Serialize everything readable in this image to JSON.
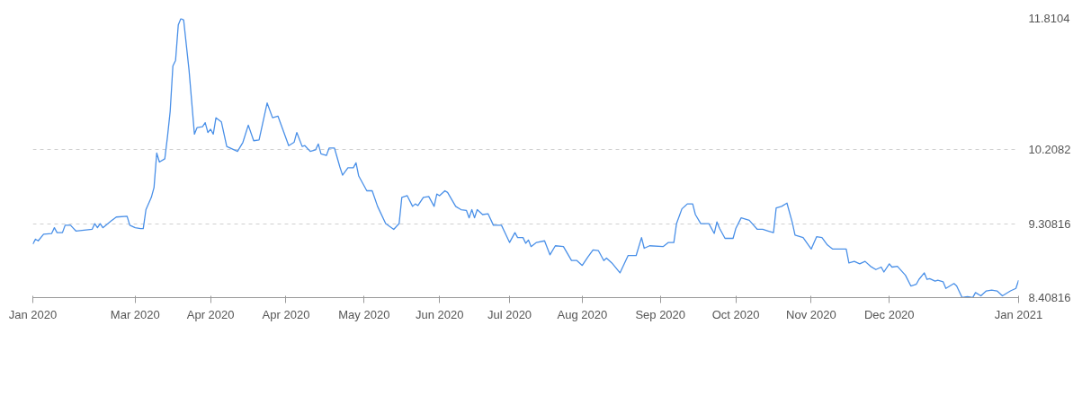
{
  "chart_data": {
    "type": "line",
    "grid": "y",
    "marker": "none",
    "line_style": "solid",
    "xlim": [
      "2020-01-26",
      "2021-01-26"
    ],
    "ylim": [
      8.40816,
      11.8104
    ],
    "xticks": [
      {
        "value": "2020-01-26",
        "label": "Jan 2020"
      },
      {
        "value": "2020-03-04",
        "label": "Mar 2020"
      },
      {
        "value": "2020-04-01",
        "label": "Apr 2020"
      },
      {
        "value": "2020-04-29",
        "label": "Apr 2020"
      },
      {
        "value": "2020-05-28",
        "label": "May 2020"
      },
      {
        "value": "2020-06-25",
        "label": "Jun 2020"
      },
      {
        "value": "2020-07-21",
        "label": "Jul 2020"
      },
      {
        "value": "2020-08-17",
        "label": "Aug 2020"
      },
      {
        "value": "2020-09-15",
        "label": "Sep 2020"
      },
      {
        "value": "2020-10-13",
        "label": "Oct 2020"
      },
      {
        "value": "2020-11-10",
        "label": "Nov 2020"
      },
      {
        "value": "2020-12-09",
        "label": "Dec 2020"
      },
      {
        "value": "2021-01-26",
        "label": "Jan 2021"
      }
    ],
    "yticks": [
      8.40816,
      9.30816,
      10.2082,
      11.8104
    ],
    "x": [
      "2020-01-26",
      "2020-01-27",
      "2020-01-28",
      "2020-01-30",
      "2020-02-02",
      "2020-02-03",
      "2020-02-04",
      "2020-02-06",
      "2020-02-07",
      "2020-02-09",
      "2020-02-11",
      "2020-02-17",
      "2020-02-18",
      "2020-02-19",
      "2020-02-20",
      "2020-02-21",
      "2020-02-24",
      "2020-02-26",
      "2020-03-01",
      "2020-03-02",
      "2020-03-04",
      "2020-03-06",
      "2020-03-07",
      "2020-03-08",
      "2020-03-10",
      "2020-03-11",
      "2020-03-12",
      "2020-03-13",
      "2020-03-15",
      "2020-03-16",
      "2020-03-17",
      "2020-03-18",
      "2020-03-19",
      "2020-03-20",
      "2020-03-21",
      "2020-03-22",
      "2020-03-24",
      "2020-03-26",
      "2020-03-27",
      "2020-03-29",
      "2020-03-30",
      "2020-03-31",
      "2020-04-01",
      "2020-04-02",
      "2020-04-03",
      "2020-04-05",
      "2020-04-07",
      "2020-04-11",
      "2020-04-13",
      "2020-04-15",
      "2020-04-17",
      "2020-04-19",
      "2020-04-22",
      "2020-04-24",
      "2020-04-26",
      "2020-04-30",
      "2020-05-02",
      "2020-05-03",
      "2020-05-05",
      "2020-05-06",
      "2020-05-08",
      "2020-05-10",
      "2020-05-11",
      "2020-05-12",
      "2020-05-14",
      "2020-05-15",
      "2020-05-17",
      "2020-05-19",
      "2020-05-20",
      "2020-05-22",
      "2020-05-24",
      "2020-05-25",
      "2020-05-26",
      "2020-05-29",
      "2020-05-31",
      "2020-06-02",
      "2020-06-05",
      "2020-06-08",
      "2020-06-10",
      "2020-06-11",
      "2020-06-13",
      "2020-06-15",
      "2020-06-16",
      "2020-06-17",
      "2020-06-19",
      "2020-06-21",
      "2020-06-23",
      "2020-06-24",
      "2020-06-25",
      "2020-06-27",
      "2020-06-28",
      "2020-07-01",
      "2020-07-03",
      "2020-07-05",
      "2020-07-06",
      "2020-07-07",
      "2020-07-08",
      "2020-07-09",
      "2020-07-11",
      "2020-07-13",
      "2020-07-15",
      "2020-07-18",
      "2020-07-21",
      "2020-07-23",
      "2020-07-24",
      "2020-07-26",
      "2020-07-27",
      "2020-07-28",
      "2020-07-29",
      "2020-07-31",
      "2020-08-03",
      "2020-08-05",
      "2020-08-07",
      "2020-08-10",
      "2020-08-13",
      "2020-08-15",
      "2020-08-17",
      "2020-08-19",
      "2020-08-21",
      "2020-08-23",
      "2020-08-25",
      "2020-08-26",
      "2020-08-28",
      "2020-08-31",
      "2020-09-03",
      "2020-09-06",
      "2020-09-08",
      "2020-09-09",
      "2020-09-11",
      "2020-09-16",
      "2020-09-18",
      "2020-09-20",
      "2020-09-21",
      "2020-09-23",
      "2020-09-25",
      "2020-09-27",
      "2020-09-28",
      "2020-09-30",
      "2020-10-03",
      "2020-10-05",
      "2020-10-06",
      "2020-10-07",
      "2020-10-09",
      "2020-10-12",
      "2020-10-13",
      "2020-10-15",
      "2020-10-18",
      "2020-10-21",
      "2020-10-23",
      "2020-10-25",
      "2020-10-27",
      "2020-10-28",
      "2020-10-30",
      "2020-11-01",
      "2020-11-03",
      "2020-11-04",
      "2020-11-07",
      "2020-11-10",
      "2020-11-12",
      "2020-11-14",
      "2020-11-16",
      "2020-11-18",
      "2020-11-23",
      "2020-11-24",
      "2020-11-26",
      "2020-11-28",
      "2020-11-30",
      "2020-12-02",
      "2020-12-04",
      "2020-12-06",
      "2020-12-07",
      "2020-12-09",
      "2020-12-10",
      "2020-12-12",
      "2020-12-15",
      "2020-12-17",
      "2020-12-19",
      "2020-12-20",
      "2020-12-22",
      "2020-12-23",
      "2020-12-24",
      "2020-12-26",
      "2020-12-27",
      "2020-12-29",
      "2020-12-30",
      "2021-01-02",
      "2021-01-03",
      "2021-01-05",
      "2021-01-07",
      "2021-01-09",
      "2021-01-10",
      "2021-01-12",
      "2021-01-14",
      "2021-01-16",
      "2021-01-18",
      "2021-01-20",
      "2021-01-23",
      "2021-01-25",
      "2021-01-26"
    ],
    "series": [
      {
        "color": "#4a90e8",
        "values": [
          9.06,
          9.12,
          9.1,
          9.18,
          9.19,
          9.26,
          9.2,
          9.2,
          9.29,
          9.29,
          9.22,
          9.24,
          9.31,
          9.26,
          9.31,
          9.26,
          9.34,
          9.39,
          9.4,
          9.29,
          9.26,
          9.25,
          9.25,
          9.48,
          9.63,
          9.75,
          10.17,
          10.06,
          10.1,
          10.37,
          10.68,
          11.23,
          11.3,
          11.73,
          11.81,
          11.79,
          11.18,
          10.4,
          10.48,
          10.49,
          10.54,
          10.42,
          10.46,
          10.4,
          10.6,
          10.55,
          10.25,
          10.19,
          10.3,
          10.51,
          10.32,
          10.33,
          10.78,
          10.6,
          10.62,
          10.26,
          10.3,
          10.42,
          10.25,
          10.26,
          10.19,
          10.21,
          10.28,
          10.16,
          10.14,
          10.23,
          10.23,
          10.0,
          9.9,
          9.99,
          9.99,
          10.05,
          9.89,
          9.71,
          9.71,
          9.52,
          9.31,
          9.24,
          9.31,
          9.63,
          9.65,
          9.52,
          9.55,
          9.53,
          9.63,
          9.64,
          9.52,
          9.67,
          9.65,
          9.71,
          9.69,
          9.52,
          9.48,
          9.47,
          9.38,
          9.48,
          9.38,
          9.48,
          9.42,
          9.43,
          9.29,
          9.29,
          9.08,
          9.2,
          9.14,
          9.14,
          9.07,
          9.11,
          9.03,
          9.08,
          9.1,
          8.93,
          9.04,
          9.03,
          8.86,
          8.86,
          8.8,
          8.9,
          8.99,
          8.98,
          8.86,
          8.89,
          8.83,
          8.71,
          8.92,
          8.92,
          9.14,
          9.01,
          9.04,
          9.03,
          9.08,
          9.08,
          9.31,
          9.49,
          9.55,
          9.55,
          9.42,
          9.31,
          9.31,
          9.19,
          9.33,
          9.25,
          9.13,
          9.13,
          9.25,
          9.38,
          9.35,
          9.24,
          9.24,
          9.22,
          9.2,
          9.5,
          9.52,
          9.56,
          9.32,
          9.17,
          9.14,
          9.0,
          9.15,
          9.14,
          9.05,
          9.0,
          9.0,
          8.83,
          8.85,
          8.82,
          8.85,
          8.79,
          8.75,
          8.78,
          8.72,
          8.82,
          8.78,
          8.79,
          8.68,
          8.55,
          8.57,
          8.63,
          8.71,
          8.63,
          8.64,
          8.61,
          8.62,
          8.6,
          8.52,
          8.58,
          8.55,
          8.41,
          8.42,
          8.41,
          8.47,
          8.43,
          8.49,
          8.5,
          8.49,
          8.43,
          8.49,
          8.52,
          8.62
        ]
      }
    ]
  }
}
